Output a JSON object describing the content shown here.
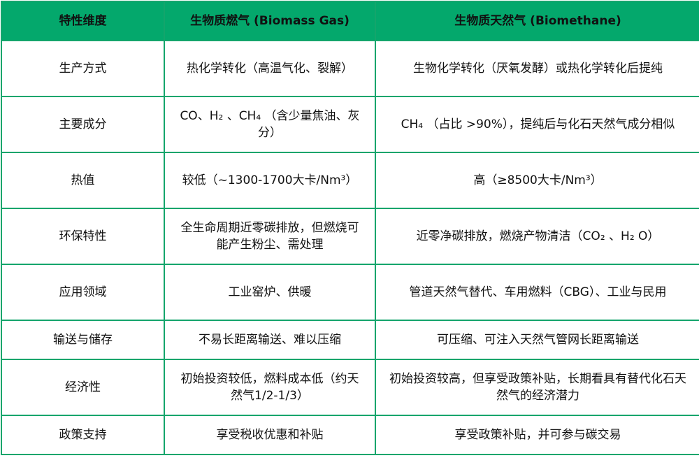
{
  "colors": {
    "header_bg": "#04a86c",
    "border": "#14a56c"
  },
  "headers": [
    "特性维度",
    "生物质燃气 (Biomass Gas)",
    "生物质天然气 (Biomethane)"
  ],
  "rows": [
    {
      "dimension": "生产方式",
      "biomass_gas": "热化学转化（高温气化、裂解）",
      "biomethane": "生物化学转化（厌氧发酵）或热化学转化后提纯"
    },
    {
      "dimension": "主要成分",
      "biomass_gas": "CO、H₂ 、CH₄ （含少量焦油、灰分）",
      "biomethane": "CH₄ （占比 >90%），提纯后与化石天然气成分相似"
    },
    {
      "dimension": "热值",
      "biomass_gas": "较低（~1300-1700大卡/Nm³）",
      "biomethane": "高（≥8500大卡/Nm³）"
    },
    {
      "dimension": "环保特性",
      "biomass_gas": "全生命周期近零碳排放，但燃烧可能产生粉尘、需处理",
      "biomethane": "近零净碳排放，燃烧产物清洁（CO₂ 、H₂ O）"
    },
    {
      "dimension": "应用领域",
      "biomass_gas": "工业窑炉、供暖",
      "biomethane": "管道天然气替代、车用燃料（CBG）、工业与民用"
    },
    {
      "dimension": "输送与储存",
      "biomass_gas": "不易长距离输送、难以压缩",
      "biomethane": "可压缩、可注入天然气管网长距离输送"
    },
    {
      "dimension": "经济性",
      "biomass_gas": "初始投资较低，燃料成本低（约天然气1/2-1/3）",
      "biomethane": "初始投资较高，但享受政策补贴，长期看具有替代化石天然气的经济潜力"
    },
    {
      "dimension": "政策支持",
      "biomass_gas": "享受税收优惠和补贴",
      "biomethane": "享受政策补贴，并可参与碳交易"
    }
  ]
}
